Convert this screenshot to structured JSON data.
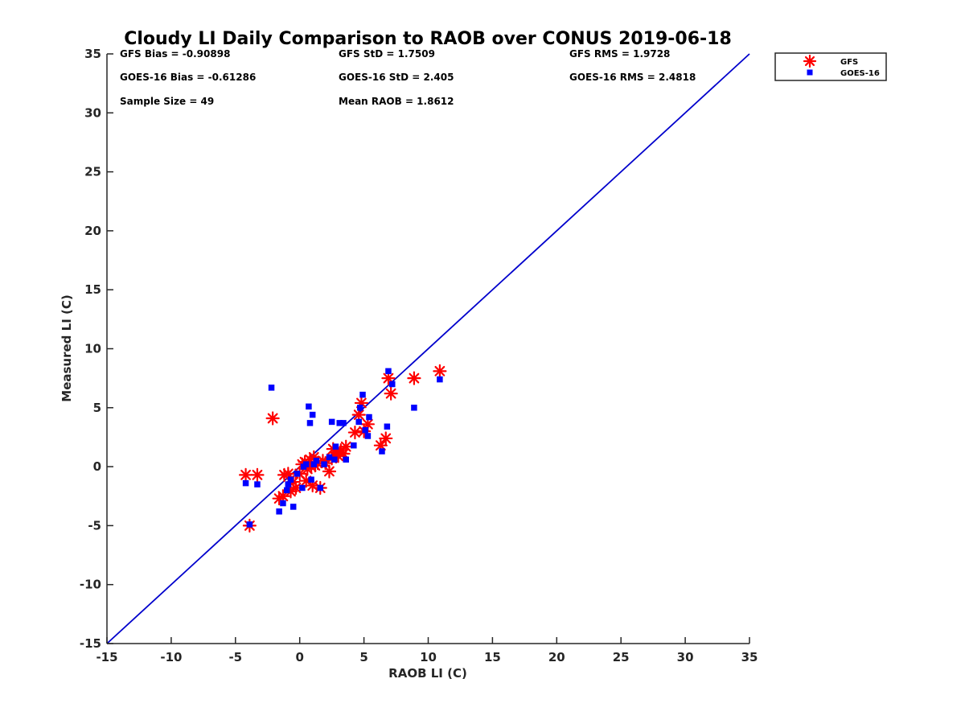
{
  "chart_data": {
    "type": "scatter",
    "title": "Cloudy LI Daily Comparison to RAOB over CONUS 2019-06-18",
    "xlabel": "RAOB LI (C)",
    "ylabel": "Measured LI (C)",
    "xlim": [
      -15,
      35
    ],
    "ylim": [
      -15,
      35
    ],
    "xticks": [
      -15,
      -10,
      -5,
      0,
      5,
      10,
      15,
      20,
      25,
      30,
      35
    ],
    "yticks": [
      -15,
      -10,
      -5,
      0,
      5,
      10,
      15,
      20,
      25,
      30,
      35
    ],
    "grid": false,
    "legend_position": "top-right",
    "reference_line": {
      "from": [
        -15,
        -15
      ],
      "to": [
        35,
        35
      ],
      "color": "#0000cc"
    },
    "stats": [
      [
        "GFS Bias = -0.90898",
        "GFS StD = 1.7509",
        "GFS RMS = 1.9728"
      ],
      [
        "GOES-16 Bias = -0.61286",
        "GOES-16 StD = 2.405",
        "GOES-16 RMS = 2.4818"
      ],
      [
        "Sample Size = 49",
        "Mean RAOB = 1.8612"
      ]
    ],
    "series": [
      {
        "name": "GFS",
        "marker": "asterisk",
        "color": "#ff0000",
        "points": [
          [
            -4.2,
            -0.7
          ],
          [
            -3.3,
            -0.7
          ],
          [
            -3.9,
            -5.0
          ],
          [
            -2.1,
            4.1
          ],
          [
            -1.6,
            -2.7
          ],
          [
            -1.3,
            -2.5
          ],
          [
            -1.2,
            -0.7
          ],
          [
            -0.9,
            -0.6
          ],
          [
            -0.7,
            -2.1
          ],
          [
            -0.5,
            -1.3
          ],
          [
            -0.3,
            -1.8
          ],
          [
            0.0,
            -0.6
          ],
          [
            0.2,
            0.2
          ],
          [
            0.4,
            0.4
          ],
          [
            0.5,
            -1.2
          ],
          [
            0.6,
            -0.2
          ],
          [
            0.8,
            0.6
          ],
          [
            0.9,
            0.0
          ],
          [
            1.0,
            -1.6
          ],
          [
            1.1,
            0.8
          ],
          [
            1.2,
            0.1
          ],
          [
            1.4,
            0.3
          ],
          [
            1.6,
            -1.8
          ],
          [
            1.8,
            0.5
          ],
          [
            2.0,
            0.3
          ],
          [
            2.3,
            -0.4
          ],
          [
            2.5,
            0.7
          ],
          [
            2.6,
            1.5
          ],
          [
            2.8,
            1.2
          ],
          [
            3.0,
            0.9
          ],
          [
            3.2,
            1.4
          ],
          [
            3.4,
            1.1
          ],
          [
            3.6,
            1.7
          ],
          [
            4.3,
            2.9
          ],
          [
            4.6,
            4.4
          ],
          [
            4.8,
            5.4
          ],
          [
            5.0,
            3.0
          ],
          [
            5.3,
            3.6
          ],
          [
            6.3,
            1.8
          ],
          [
            6.7,
            2.4
          ],
          [
            6.9,
            7.5
          ],
          [
            7.1,
            6.2
          ],
          [
            8.9,
            7.5
          ],
          [
            10.9,
            8.1
          ]
        ]
      },
      {
        "name": "GOES-16",
        "marker": "square",
        "color": "#0000ff",
        "points": [
          [
            -4.2,
            -1.4
          ],
          [
            -3.3,
            -1.5
          ],
          [
            -3.9,
            -4.9
          ],
          [
            -2.2,
            6.7
          ],
          [
            -1.6,
            -3.8
          ],
          [
            -1.3,
            -3.1
          ],
          [
            -1.0,
            -2.0
          ],
          [
            -0.9,
            -1.5
          ],
          [
            -0.7,
            -1.1
          ],
          [
            -0.5,
            -3.4
          ],
          [
            -0.2,
            -0.6
          ],
          [
            0.2,
            -1.8
          ],
          [
            0.3,
            0.0
          ],
          [
            0.5,
            0.2
          ],
          [
            0.7,
            5.1
          ],
          [
            0.8,
            3.7
          ],
          [
            0.9,
            -1.1
          ],
          [
            1.0,
            4.4
          ],
          [
            1.1,
            0.2
          ],
          [
            1.3,
            0.5
          ],
          [
            1.6,
            -1.8
          ],
          [
            1.9,
            0.2
          ],
          [
            2.3,
            0.8
          ],
          [
            2.5,
            3.8
          ],
          [
            2.7,
            0.6
          ],
          [
            2.8,
            1.7
          ],
          [
            3.1,
            3.7
          ],
          [
            3.4,
            3.7
          ],
          [
            3.6,
            0.6
          ],
          [
            4.2,
            1.8
          ],
          [
            4.6,
            3.8
          ],
          [
            4.7,
            5.0
          ],
          [
            4.9,
            6.1
          ],
          [
            5.1,
            3.1
          ],
          [
            5.3,
            2.6
          ],
          [
            5.4,
            4.2
          ],
          [
            6.4,
            1.3
          ],
          [
            6.8,
            3.4
          ],
          [
            6.9,
            8.1
          ],
          [
            7.2,
            7.0
          ],
          [
            8.9,
            5.0
          ],
          [
            10.9,
            7.4
          ]
        ]
      }
    ]
  }
}
